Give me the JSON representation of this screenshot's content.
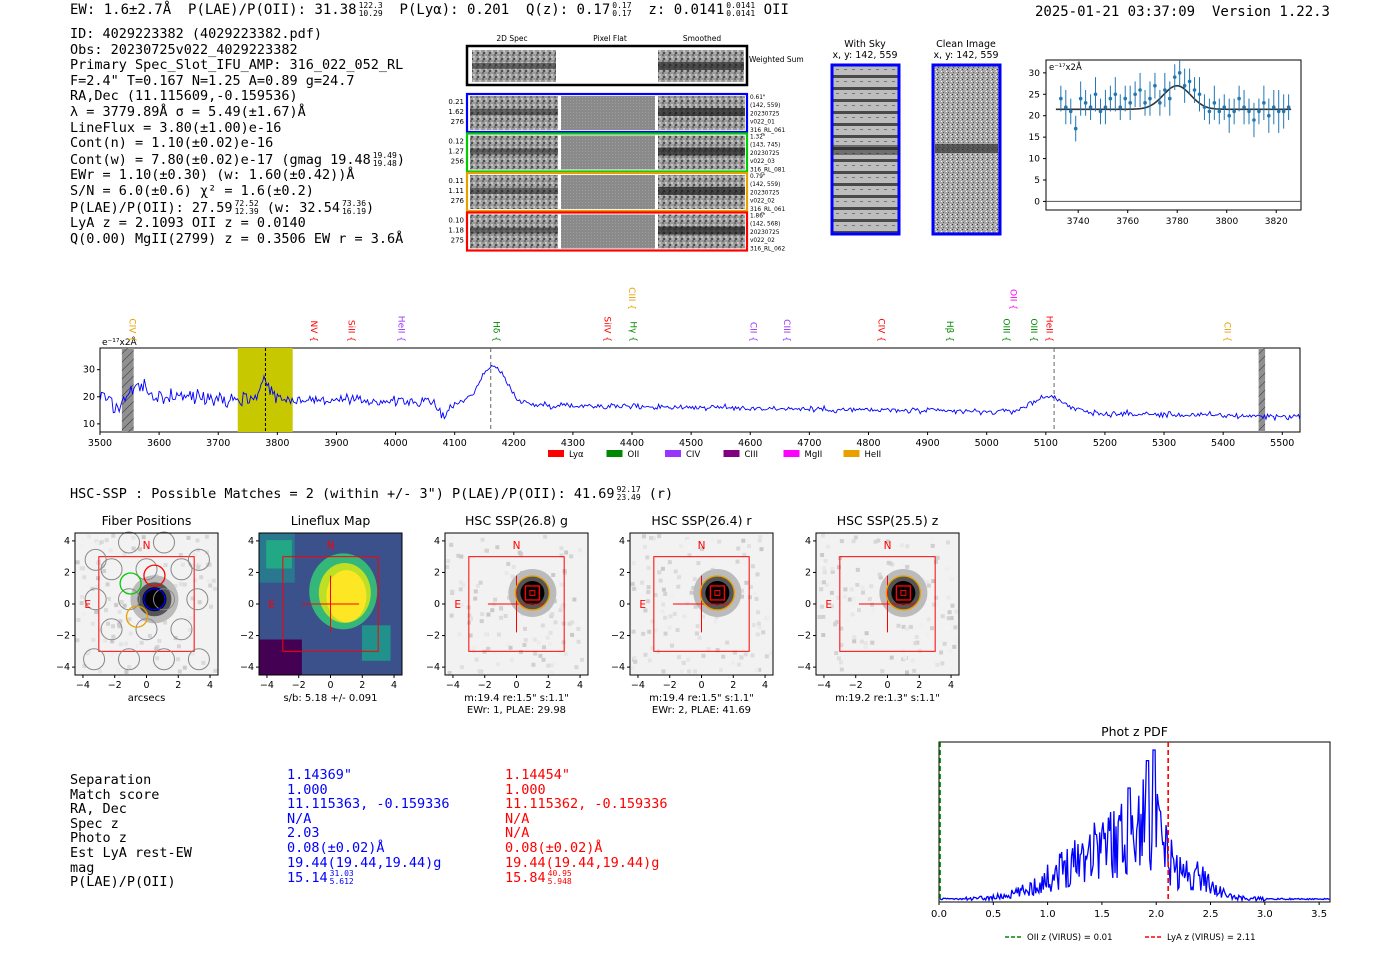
{
  "header": {
    "ew": "EW: 1.6±2.7Å",
    "plae": "P(LAE)/P(OII): 31.38",
    "plae_hi": "122.3",
    "plae_lo": "10.29",
    "plya": "P(Lyα): 0.201",
    "qz": "Q(z): 0.17",
    "qz_hi": "0.17",
    "qz_lo": "0.17",
    "z": "z: 0.0141",
    "z_hi": "0.0141",
    "z_lo": "0.0141",
    "line": "OII",
    "datetime": "2025-01-21 03:37:09",
    "version": "Version 1.22.3"
  },
  "info": {
    "id": "ID: 4029223382 (4029223382.pdf)",
    "obs": "Obs: 20230725v022_4029223382",
    "primary": "Primary Spec_Slot_IFU_AMP: 316_022_052_RL",
    "params": "F=2.4\"  T=0.167  N=1.25  A=0.89  g=24.7",
    "radec": "RA,Dec (11.115609,-0.159536)",
    "lambda": "λ = 3779.89Å  σ = 5.49(±1.67)Å",
    "lineflux": "LineFlux = 3.80(±1.00)e-16",
    "contn": "Cont(n) = 1.10(±0.02)e-16",
    "contw": "Cont(w) = 7.80(±0.02)e-17 (gmag 19.48",
    "contw_hi": "19.49",
    "contw_lo": "19.48",
    "ewr": "EWr = 1.10(±0.30) (w: 1.60(±0.42))Å",
    "sn": "S/N = 6.0(±0.6)  χ² = 1.6(±0.2)",
    "plae": "P(LAE)/P(OII): 27.59",
    "plae_hi": "72.52",
    "plae_lo": "12.39",
    "plae_w": "(w: 32.54",
    "plae_w_hi": "73.36",
    "plae_w_lo": "16.19",
    "lyaz": "LyA z = 2.1093  OII z = 0.0140",
    "mgii": "Q(0.00) MgII(2799) z = 0.3506  EW r = 3.6Å"
  },
  "spec2d": {
    "col_titles": [
      "2D Spec",
      "Pixel Flat",
      "Smoothed"
    ],
    "weighted_label": "Weighted Sum",
    "rows": [
      {
        "nums": [
          "0.21",
          "1.62",
          "276"
        ],
        "notes": [
          "0.61\"",
          "(142, 559)",
          "20230725",
          "v022_01",
          "316_RL_061"
        ],
        "color": "#0000ff"
      },
      {
        "nums": [
          "0.12",
          "1.27",
          "256"
        ],
        "notes": [
          "1.32\"",
          "(143, 745)",
          "20230725",
          "v022_03",
          "316_RL_081"
        ],
        "color": "#00cc00"
      },
      {
        "nums": [
          "0.11",
          "1.11",
          "276"
        ],
        "notes": [
          "0.79\"",
          "(142, 559)",
          "20230725",
          "v022_02",
          "316_RL_061"
        ],
        "color": "#e8a000"
      },
      {
        "nums": [
          "0.10",
          "1.18",
          "275"
        ],
        "notes": [
          "1.86\"",
          "(142, 568)",
          "20230725",
          "v022_02",
          "316_RL_062"
        ],
        "color": "#ff0000"
      }
    ]
  },
  "sky": {
    "with_sky_title": "With Sky",
    "with_sky_xy": "x, y: 142, 559",
    "clean_title": "Clean Image",
    "clean_xy": "x, y: 142, 559"
  },
  "colors": {
    "blue": "#0000ff",
    "red": "#ff0000",
    "olive": "#c8c800",
    "plot_blue": "#1f77b4",
    "gray": "#888888"
  },
  "chart_data": [
    {
      "type": "scatter",
      "name": "line-zoom-fit",
      "unit_label": "e⁻¹⁷x2Å",
      "x": [
        3733,
        3735,
        3737,
        3739,
        3741,
        3743,
        3745,
        3747,
        3749,
        3751,
        3753,
        3755,
        3757,
        3759,
        3761,
        3763,
        3765,
        3767,
        3769,
        3771,
        3773,
        3775,
        3777,
        3779,
        3781,
        3783,
        3785,
        3787,
        3789,
        3791,
        3793,
        3795,
        3797,
        3799,
        3801,
        3803,
        3805,
        3807,
        3809,
        3811,
        3813,
        3815,
        3817,
        3819,
        3821,
        3823,
        3825
      ],
      "y": [
        24,
        22,
        21,
        17,
        24,
        23,
        22,
        25,
        21,
        22,
        24,
        25,
        22,
        24,
        23,
        25,
        26,
        23,
        24,
        27,
        23,
        26,
        24,
        29,
        30,
        27,
        28,
        26,
        25,
        22,
        21,
        23,
        21,
        22,
        20,
        21,
        24,
        22,
        21,
        19,
        21,
        23,
        20,
        22,
        21,
        21,
        22
      ],
      "yerr": [
        3,
        4,
        3,
        3,
        4,
        3,
        3,
        4,
        3,
        4,
        3,
        4,
        3,
        3,
        4,
        3,
        4,
        3,
        4,
        3,
        3,
        4,
        4,
        3,
        3,
        4,
        3,
        3,
        4,
        3,
        3,
        4,
        3,
        3,
        4,
        3,
        3,
        4,
        3,
        4,
        3,
        4,
        4,
        4,
        5,
        4,
        3
      ],
      "fit_baseline": 21.5,
      "fit_amp": 5.5,
      "fit_center": 3779.9,
      "fit_sigma": 5.5,
      "xlim": [
        3727,
        3830
      ],
      "ylim": [
        -2,
        33
      ],
      "xticks": [
        3740,
        3760,
        3780,
        3800,
        3820
      ],
      "yticks": [
        0,
        5,
        10,
        15,
        20,
        25,
        30
      ]
    },
    {
      "type": "line",
      "name": "full-spectrum",
      "unit_label": "e⁻¹⁷x2Å",
      "xlim": [
        3500,
        5530
      ],
      "ylim": [
        7,
        38
      ],
      "xticks": [
        3500,
        3600,
        3700,
        3800,
        3900,
        4000,
        4100,
        4200,
        4300,
        4400,
        4500,
        4600,
        4700,
        4800,
        4900,
        5000,
        5100,
        5200,
        5300,
        5400,
        5500
      ],
      "yticks": [
        10,
        20,
        30
      ],
      "highlight_range": [
        3733,
        3826
      ],
      "highlight_line": 3779.9,
      "hatched_ranges": [
        [
          3537,
          3557
        ],
        [
          5460,
          5471
        ]
      ],
      "dashed_lines": [
        4161,
        5114
      ],
      "lines": [
        {
          "label": "CIV",
          "x": 3545,
          "color": "#e8a000",
          "row": 1
        },
        {
          "label": "NV",
          "x": 3852,
          "color": "#ff0000",
          "row": 1
        },
        {
          "label": "SiII",
          "x": 3915,
          "color": "#ff0000",
          "row": 1
        },
        {
          "label": "HeII",
          "x": 4000,
          "color": "#9933ff",
          "row": 1
        },
        {
          "label": "Hδ",
          "x": 4161,
          "color": "#008800",
          "row": 1
        },
        {
          "label": "SiIV",
          "x": 4348,
          "color": "#ff0000",
          "row": 1
        },
        {
          "label": "CIII",
          "x": 4390,
          "color": "#e8a000",
          "row": 2
        },
        {
          "label": "Hγ",
          "x": 4392,
          "color": "#008800",
          "row": 1
        },
        {
          "label": "CII",
          "x": 4595,
          "color": "#9933ff",
          "row": 1
        },
        {
          "label": "CIII",
          "x": 4652,
          "color": "#9933ff",
          "row": 1
        },
        {
          "label": "CIV",
          "x": 4812,
          "color": "#ff0000",
          "row": 1
        },
        {
          "label": "Hβ",
          "x": 4928,
          "color": "#008800",
          "row": 1
        },
        {
          "label": "OII",
          "x": 5035,
          "color": "#ff00ff",
          "row": 2
        },
        {
          "label": "OIII",
          "x": 5023,
          "color": "#008800",
          "row": 1
        },
        {
          "label": "OIII",
          "x": 5070,
          "color": "#008800",
          "row": 1
        },
        {
          "label": "HeII",
          "x": 5096,
          "color": "#ff0000",
          "row": 1
        },
        {
          "label": "CII",
          "x": 5397,
          "color": "#e8a000",
          "row": 1
        }
      ],
      "legend": [
        {
          "label": "Lyα",
          "color": "#ff0000"
        },
        {
          "label": "OII",
          "color": "#008800"
        },
        {
          "label": "CIV",
          "color": "#9933ff"
        },
        {
          "label": "CIII",
          "color": "#800080"
        },
        {
          "label": "MgII",
          "color": "#ff00ff"
        },
        {
          "label": "HeII",
          "color": "#e8a000"
        }
      ]
    },
    {
      "type": "line",
      "name": "photz-pdf",
      "title": "Phot z PDF",
      "xlim": [
        0.0,
        3.6
      ],
      "xticks": [
        0.0,
        0.5,
        1.0,
        1.5,
        2.0,
        2.5,
        3.0,
        3.5
      ],
      "oii_z": 0.01,
      "lya_z": 2.11,
      "legend": [
        {
          "label": "OII z (VIRUS) = 0.01",
          "color": "#008800"
        },
        {
          "label": "LyA z (VIRUS) = 2.11",
          "color": "#ff0000"
        }
      ]
    }
  ],
  "hsc": {
    "summary": "HSC-SSP : Possible Matches = 2 (within +/- 3\")  P(LAE)/P(OII): 41.69",
    "summary_hi": "92.17",
    "summary_lo": "23.49",
    "summary_band": "(r)",
    "panels": [
      {
        "title": "Fiber Positions",
        "sub1": "arcsecs",
        "sub2": ""
      },
      {
        "title": "Lineflux Map",
        "sub1": "s/b: 5.18 +/- 0.091",
        "sub2": ""
      },
      {
        "title": "HSC SSP(26.8) g",
        "sub1": "m:19.4  re:1.5\"  s:1.1\"",
        "sub2": "EWr: 1, PLAE: 29.98"
      },
      {
        "title": "HSC SSP(26.4) r",
        "sub1": "m:19.4  re:1.5\"  s:1.1\"",
        "sub2": "EWr: 2, PLAE: 41.69"
      },
      {
        "title": "HSC SSP(25.5) z",
        "sub1": "m:19.2  re:1.3\"  s:1.1\"",
        "sub2": ""
      }
    ],
    "compass_n": "N",
    "compass_e": "E",
    "ticks": [
      "−4",
      "−2",
      "0",
      "2",
      "4"
    ]
  },
  "match_table": {
    "labels": [
      "Separation",
      "Match score",
      "RA, Dec",
      "Spec z",
      "Photo z",
      "Est LyA rest-EW",
      "mag",
      "P(LAE)/P(OII)"
    ],
    "match1": [
      "1.14369\"",
      "1.000",
      "11.115363, -0.159336",
      "N/A",
      "2.03",
      "0.08(±0.02)Å",
      "19.44(19.44,19.44)g",
      "15.14"
    ],
    "match1_plae_hi": "31.03",
    "match1_plae_lo": "5.612",
    "match2": [
      "1.14454\"",
      "1.000",
      "11.115362, -0.159336",
      "N/A",
      "N/A",
      "0.08(±0.02)Å",
      "19.44(19.44,19.44)g",
      "15.84"
    ],
    "match2_plae_hi": "40.95",
    "match2_plae_lo": "5.948"
  }
}
